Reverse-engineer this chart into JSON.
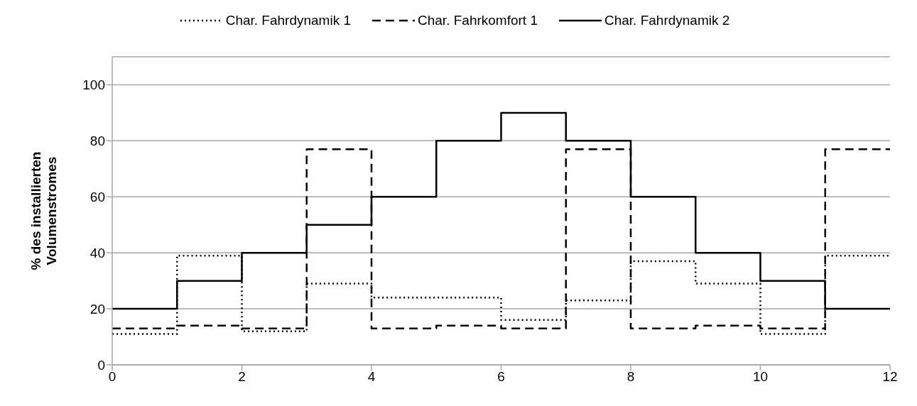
{
  "chart_data": {
    "type": "step",
    "ylabel": "% des installierten Volumenstromes",
    "x": [
      0,
      1,
      2,
      3,
      4,
      5,
      6,
      7,
      8,
      9,
      10,
      11,
      12
    ],
    "series": [
      {
        "name": "Char. Fahrdynamik 1",
        "color": "#000000",
        "line_style": "dotted",
        "values": [
          11,
          39,
          12,
          29,
          24,
          24,
          16,
          23,
          37,
          29,
          11,
          39,
          39
        ]
      },
      {
        "name": "Char. Fahrkomfort 1",
        "color": "#000000",
        "line_style": "dashed",
        "values": [
          13,
          14,
          13,
          77,
          13,
          14,
          13,
          77,
          13,
          14,
          13,
          77,
          77
        ]
      },
      {
        "name": "Char. Fahrdynamik 2",
        "color": "#000000",
        "line_style": "solid",
        "values": [
          20,
          30,
          40,
          50,
          60,
          80,
          90,
          80,
          60,
          40,
          30,
          20,
          20
        ]
      }
    ],
    "xlim": [
      0,
      12
    ],
    "xticks": [
      0,
      2,
      4,
      6,
      8,
      10,
      12
    ],
    "ylim": [
      0,
      110
    ],
    "yticks": [
      0,
      20,
      40,
      60,
      80,
      100
    ],
    "grid": "y",
    "legend": "top",
    "marker": "none"
  }
}
